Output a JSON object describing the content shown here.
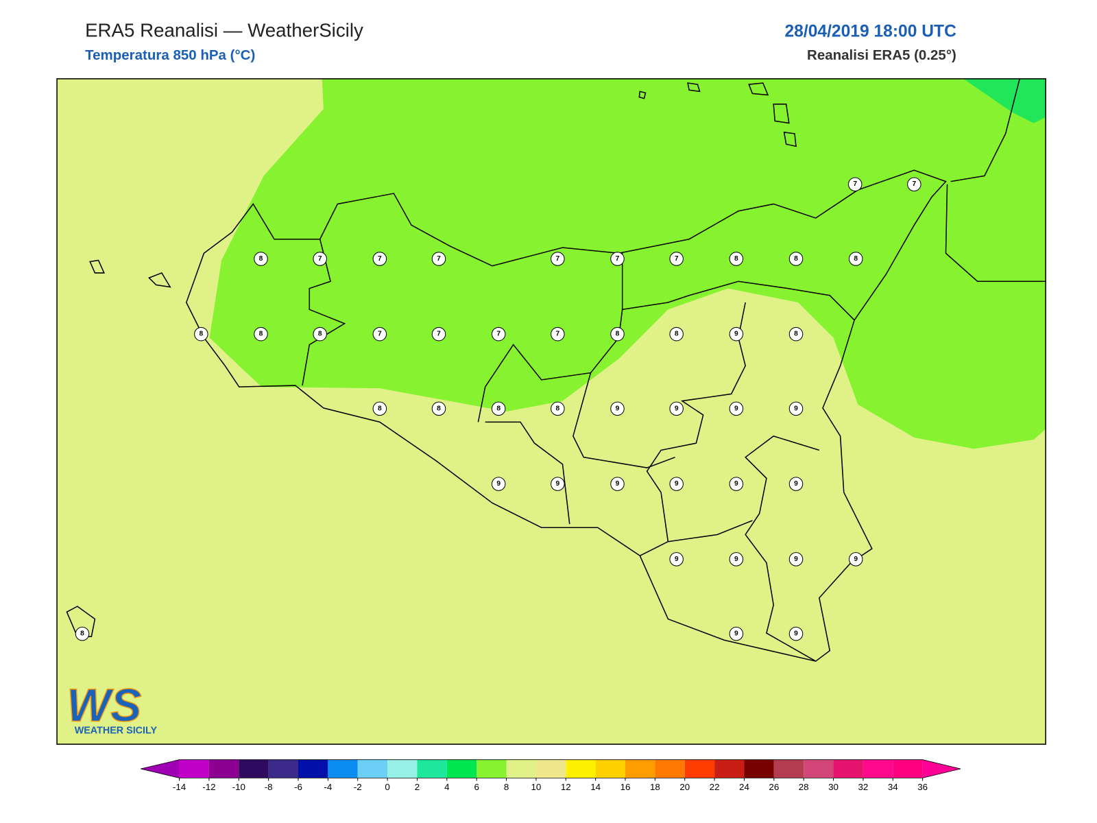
{
  "header": {
    "title": "ERA5 Reanalisi — WeatherSicily",
    "subtitle": "Temperatura 850 hPa (°C)",
    "datetime": "28/04/2019 18:00 UTC",
    "source": "Reanalisi ERA5 (0.25°)"
  },
  "map": {
    "base_color": "#e0f287",
    "region_color": "#86f230",
    "region2_color": "#22e65a",
    "stations": [
      7,
      7,
      8,
      7,
      7,
      7,
      7,
      7,
      7,
      8,
      8,
      8,
      8,
      8,
      8,
      7,
      7,
      7,
      7,
      8,
      8,
      9,
      8,
      8,
      8,
      8,
      8,
      9,
      9,
      9,
      9,
      9,
      9,
      9,
      9,
      9,
      9,
      9,
      9,
      9,
      9,
      8,
      9,
      9
    ]
  },
  "colorbar": {
    "ticks": [
      -14,
      -12,
      -10,
      -8,
      -6,
      -4,
      -2,
      0,
      2,
      4,
      6,
      8,
      10,
      12,
      14,
      16,
      18,
      20,
      22,
      24,
      26,
      28,
      30,
      32,
      34,
      36
    ],
    "under_color": "#a000b4",
    "over_color": "#ff0096",
    "colors": [
      "#c000c8",
      "#8b0090",
      "#2e0b5e",
      "#3b2a8a",
      "#0010a8",
      "#0a8cf0",
      "#6ccff6",
      "#96f0e6",
      "#1ee69a",
      "#00e650",
      "#86f230",
      "#e0f287",
      "#f0e68c",
      "#fff000",
      "#ffd000",
      "#ff9c00",
      "#ff7800",
      "#ff3c00",
      "#c81e14",
      "#780000",
      "#b43c50",
      "#d24678",
      "#e6146e",
      "#ff0a8c",
      "#ff0080"
    ]
  },
  "logo": {
    "mark": "WS",
    "name": "WEATHER SICILY"
  }
}
